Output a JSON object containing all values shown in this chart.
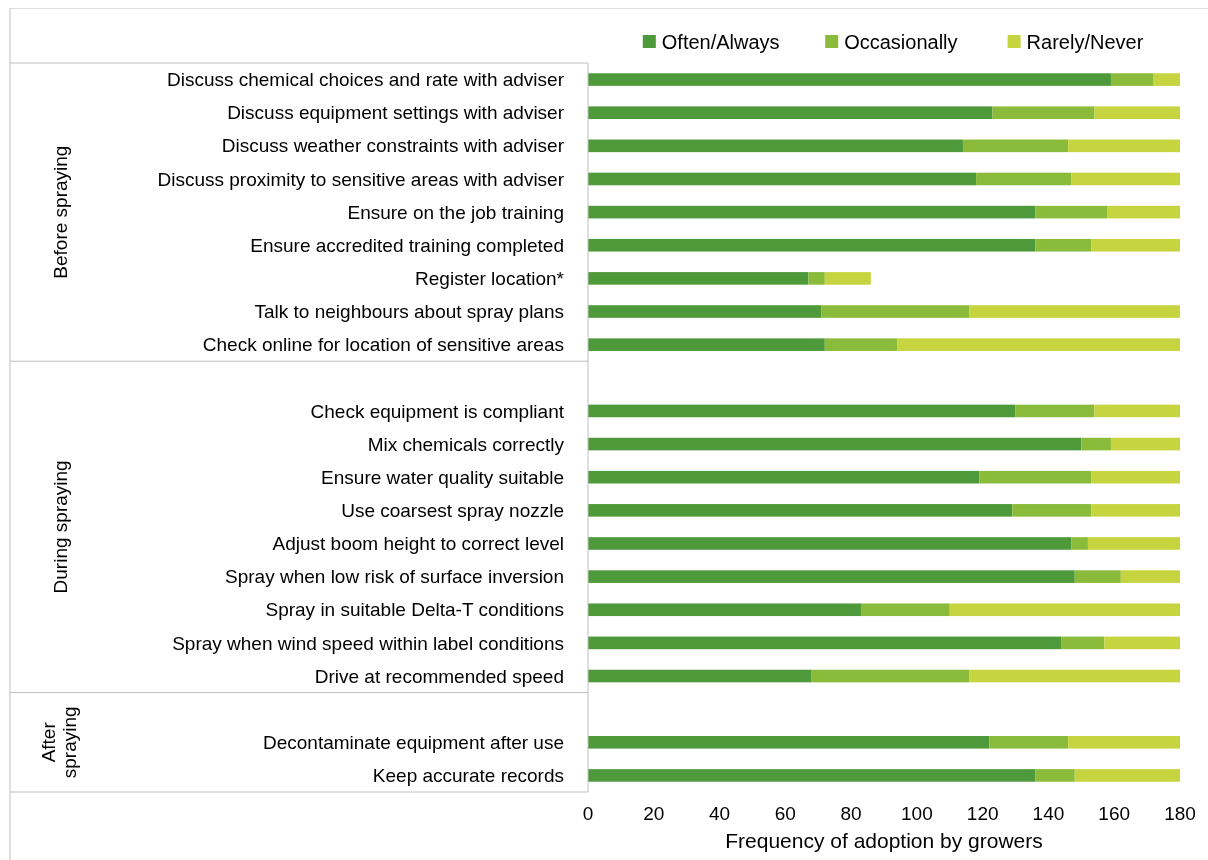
{
  "chart_data": {
    "type": "bar",
    "orientation": "horizontal",
    "stacked": true,
    "categories": [
      "Discuss chemical choices and rate with adviser",
      "Discuss equipment settings with adviser",
      "Discuss weather constraints with adviser",
      "Discuss proximity to sensitive areas with adviser",
      "Ensure on the job training",
      "Ensure accredited training completed",
      "Register location*",
      "Talk to neighbours about spray plans",
      "Check online for location of sensitive areas",
      null,
      "Check equipment is compliant",
      "Mix chemicals correctly",
      "Ensure water quality suitable",
      "Use coarsest spray nozzle",
      "Adjust boom height to correct level",
      "Spray when low risk of surface inversion",
      "Spray in suitable Delta-T conditions",
      "Spray when wind speed within label conditions",
      "Drive at recommended speed",
      null,
      "Decontaminate equipment after use",
      "Keep accurate records"
    ],
    "series": [
      {
        "name": "Often/Always",
        "color": "#4e9a3a",
        "values": [
          159,
          123,
          114,
          118,
          136,
          136,
          67,
          71,
          72,
          null,
          130,
          150,
          119,
          129,
          147,
          148,
          83,
          144,
          68,
          null,
          122,
          136
        ]
      },
      {
        "name": "Occasionally",
        "color": "#8bbb3b",
        "values": [
          13,
          31,
          32,
          29,
          22,
          17,
          5,
          45,
          22,
          null,
          24,
          9,
          34,
          24,
          5,
          14,
          27,
          13,
          48,
          null,
          24,
          12
        ]
      },
      {
        "name": "Rarely/Never",
        "color": "#c6d53f",
        "values": [
          8,
          26,
          34,
          33,
          22,
          27,
          14,
          64,
          86,
          null,
          26,
          21,
          27,
          27,
          28,
          18,
          70,
          23,
          64,
          null,
          34,
          32
        ]
      }
    ],
    "xlim": [
      0,
      180
    ],
    "xticks": [
      0,
      20,
      40,
      60,
      80,
      100,
      120,
      140,
      160,
      180
    ],
    "xlabel": "Frequency of adoption by growers",
    "legend": "top right",
    "annotations": [
      "Before spraying",
      "During spraying",
      "After spraying"
    ]
  }
}
